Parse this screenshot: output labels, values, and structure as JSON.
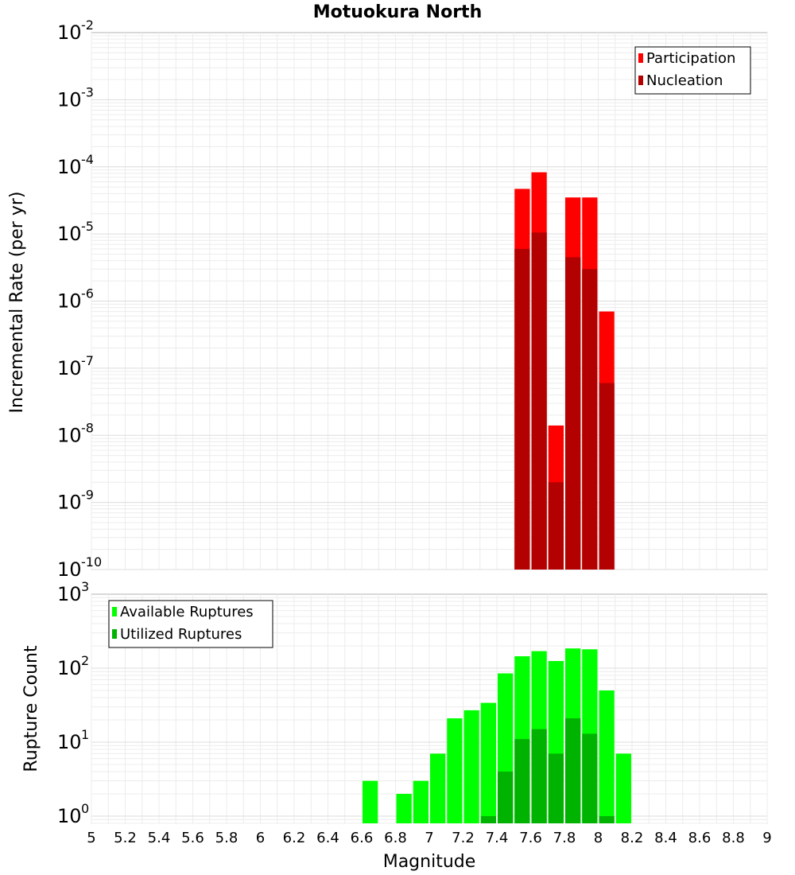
{
  "title": "Motuokura North",
  "chart_data": [
    {
      "type": "bar",
      "id": "rate",
      "ylabel": "Incremental Rate (per yr)",
      "y_scale": "log",
      "ylim": [
        1e-10,
        0.01
      ],
      "y_ticks": [
        {
          "base": "10",
          "exp": "-10",
          "value": 1e-10
        },
        {
          "base": "10",
          "exp": "-9",
          "value": 1e-09
        },
        {
          "base": "10",
          "exp": "-8",
          "value": 1e-08
        },
        {
          "base": "10",
          "exp": "-7",
          "value": 1e-07
        },
        {
          "base": "10",
          "exp": "-6",
          "value": 1e-06
        },
        {
          "base": "10",
          "exp": "-5",
          "value": 1e-05
        },
        {
          "base": "10",
          "exp": "-4",
          "value": 0.0001
        },
        {
          "base": "10",
          "exp": "-3",
          "value": 0.001
        },
        {
          "base": "10",
          "exp": "-2",
          "value": 0.01
        }
      ],
      "grid": true,
      "legend_placement": "top-right",
      "x": [
        7.55,
        7.65,
        7.75,
        7.85,
        7.95,
        8.05
      ],
      "series": [
        {
          "name": "Participation",
          "color": "#ff0000",
          "values": [
            4.7e-05,
            8.3e-05,
            1.4e-08,
            3.5e-05,
            3.5e-05,
            7e-07
          ]
        },
        {
          "name": "Nucleation",
          "color": "#b30000",
          "values": [
            6e-06,
            1.05e-05,
            2e-09,
            4.5e-06,
            3e-06,
            6e-08
          ]
        }
      ]
    },
    {
      "type": "bar",
      "id": "count",
      "ylabel": "Rupture Count",
      "y_scale": "log",
      "ylim": [
        0.8,
        1000
      ],
      "y_ticks": [
        {
          "base": "10",
          "exp": "0",
          "value": 1
        },
        {
          "base": "10",
          "exp": "1",
          "value": 10
        },
        {
          "base": "10",
          "exp": "2",
          "value": 100
        },
        {
          "base": "10",
          "exp": "3",
          "value": 1000
        }
      ],
      "grid": true,
      "legend_placement": "top-left",
      "x": [
        6.65,
        6.85,
        6.95,
        7.05,
        7.15,
        7.25,
        7.35,
        7.45,
        7.55,
        7.65,
        7.75,
        7.85,
        7.95,
        8.05,
        8.15
      ],
      "series": [
        {
          "name": "Available Ruptures",
          "color": "#00ff00",
          "values": [
            3,
            2,
            3,
            7,
            21,
            27,
            34,
            85,
            145,
            170,
            125,
            185,
            180,
            50,
            7
          ]
        },
        {
          "name": "Utilized Ruptures",
          "color": "#00b300",
          "values": [
            0,
            0,
            0,
            0,
            0,
            0,
            1,
            4,
            11,
            15,
            7,
            21,
            13,
            1,
            0
          ]
        }
      ]
    }
  ],
  "x_axis": {
    "label": "Magnitude",
    "xlim": [
      5,
      9
    ],
    "bin_width": 0.1,
    "tick_labels": [
      "5",
      "5.2",
      "5.4",
      "5.6",
      "5.8",
      "6",
      "6.2",
      "6.4",
      "6.6",
      "6.8",
      "7",
      "7.2",
      "7.4",
      "7.6",
      "7.8",
      "8",
      "8.2",
      "8.4",
      "8.6",
      "8.8",
      "9"
    ]
  }
}
